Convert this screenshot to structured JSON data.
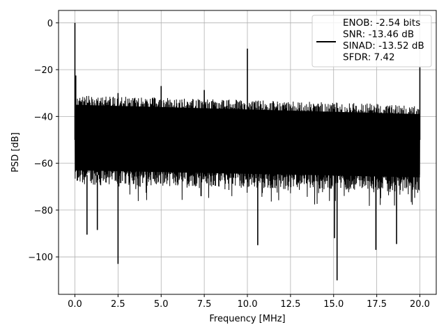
{
  "chart_data": {
    "type": "line",
    "title": "",
    "xlabel": "Frequency [MHz]",
    "ylabel": "PSD [dB]",
    "xlim": [
      -0.95,
      20.95
    ],
    "ylim": [
      -116,
      5.3
    ],
    "xticks": [
      0,
      2.5,
      5,
      7.5,
      10,
      12.5,
      15,
      17.5,
      20
    ],
    "xtick_labels": [
      "0.0",
      "2.5",
      "5.0",
      "7.5",
      "10.0",
      "12.5",
      "15.0",
      "17.5",
      "20.0"
    ],
    "yticks": [
      0,
      -20,
      -40,
      -60,
      -80,
      -100
    ],
    "ytick_labels": [
      "0",
      "−20",
      "−40",
      "−60",
      "−80",
      "−100"
    ],
    "grid": true,
    "legend_position": "top-right",
    "series": [
      {
        "name": "ENOB: -2.54 bits\nSNR: -13.46 dB\nSINAD: -13.52 dB\nSFDR: 7.42",
        "legend_lines": [
          "ENOB: -2.54 bits",
          "SNR: -13.46 dB",
          "SINAD: -13.52 dB",
          "SFDR: 7.42"
        ],
        "color": "#000000",
        "noise_band": {
          "x_start": 0.0,
          "x_end": 20.0,
          "upper_start": -31,
          "upper_end": -35,
          "lower_start": -69,
          "lower_end": -72
        },
        "spikes": [
          {
            "x": 0.0,
            "y": 0.0
          },
          {
            "x": 0.05,
            "y": -22.5
          },
          {
            "x": 0.7,
            "y": -90.5
          },
          {
            "x": 1.3,
            "y": -88.5
          },
          {
            "x": 2.5,
            "y": -30.0
          },
          {
            "x": 2.5,
            "y": -103.0
          },
          {
            "x": 5.0,
            "y": -27.0
          },
          {
            "x": 7.5,
            "y": -28.7
          },
          {
            "x": 10.0,
            "y": -11.0
          },
          {
            "x": 10.6,
            "y": -95.0
          },
          {
            "x": 15.05,
            "y": -92.0
          },
          {
            "x": 15.2,
            "y": -110.0
          },
          {
            "x": 17.45,
            "y": -97.0
          },
          {
            "x": 18.65,
            "y": -94.5
          },
          {
            "x": 20.0,
            "y": -19.0
          }
        ]
      }
    ]
  },
  "colors": {
    "background": "#ffffff",
    "grid": "#b0b0b0",
    "axes": "#000000",
    "series": "#000000",
    "legend_border": "#cccccc"
  }
}
